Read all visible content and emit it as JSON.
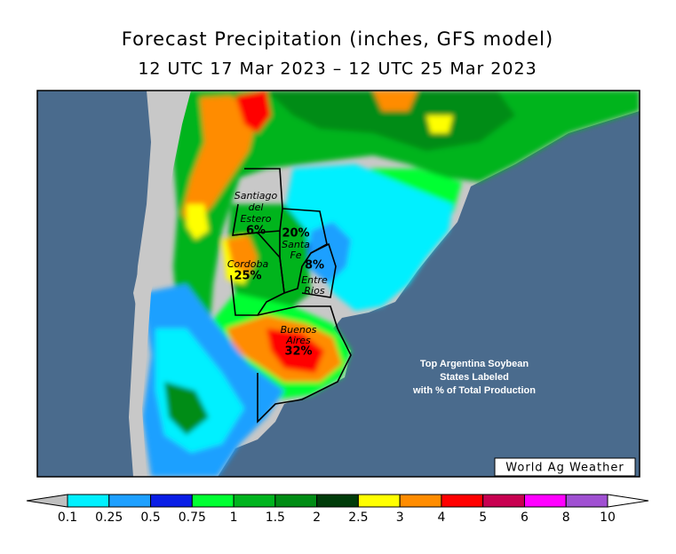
{
  "header": {
    "title": "Forecast Precipitation (inches, GFS model)",
    "subtitle": "12 UTC 17 Mar 2023 – 12 UTC 25 Mar 2023"
  },
  "map": {
    "regions": [
      {
        "name": [
          "Santiago",
          "del",
          "Estero"
        ],
        "share": "6%"
      },
      {
        "name": [
          "Santa",
          "Fe"
        ],
        "share": "20%"
      },
      {
        "name": [
          "Entre",
          "Rios"
        ],
        "share": "8%"
      },
      {
        "name": [
          "Cordoba"
        ],
        "share": "25%"
      },
      {
        "name": [
          "Buenos",
          "Aires"
        ],
        "share": "32%"
      }
    ],
    "annotation": [
      "Top Argentina Soybean",
      "States Labeled",
      "with % of Total Production"
    ],
    "credit": "World Ag Weather"
  },
  "legend": {
    "ticks": [
      0.1,
      0.25,
      0.5,
      0.75,
      1,
      1.5,
      2,
      2.5,
      3,
      4,
      5,
      6,
      8,
      10
    ],
    "colors": [
      "#00f0ff",
      "#1ea0ff",
      "#0a1ee6",
      "#00ff32",
      "#00b41e",
      "#008c14",
      "#003c0a",
      "#ffff00",
      "#ff8c00",
      "#ff0000",
      "#c80050",
      "#ff00ff",
      "#a050d2"
    ],
    "under_color": "#c0c0c0",
    "over_color": "#ffffff"
  }
}
